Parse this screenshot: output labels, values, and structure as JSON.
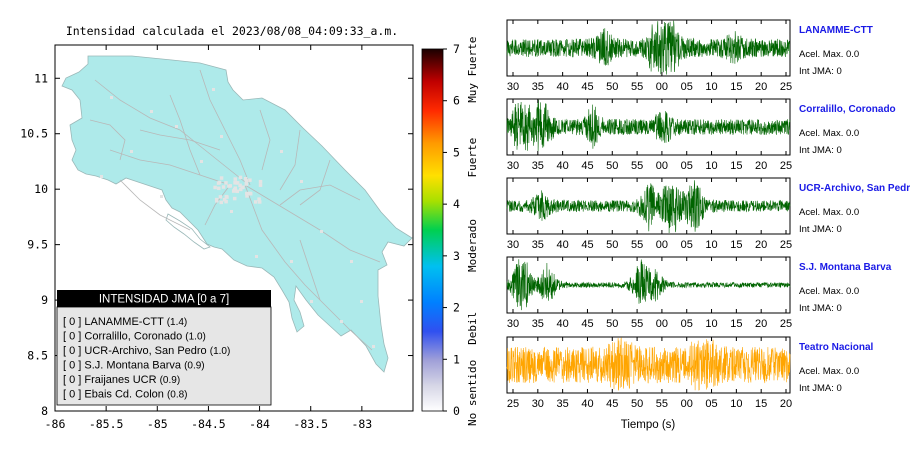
{
  "map": {
    "title": "Intensidad calculada el 2023/08/08_04:09:33_a.m.",
    "lat_ticks": [
      "11",
      "10.5",
      "10",
      "9.5",
      "9",
      "8.5",
      "8"
    ],
    "lon_ticks": [
      "-86",
      "-85.5",
      "-85",
      "-84.5",
      "-84",
      "-83.5",
      "-83"
    ],
    "lat_range": [
      8,
      11.3
    ],
    "lon_range": [
      -86,
      -82.5
    ],
    "land_color": "#aeeaea",
    "legend": {
      "title": "INTENSIDAD JMA [0 a 7]",
      "title_bg": "#000000",
      "title_color": "#ffffff",
      "box_bg": "#e6e6e6",
      "items": [
        {
          "label": "[ 0 ]  LANAMME-CTT",
          "value": "(1.4)"
        },
        {
          "label": "[ 0 ]  Corralillo, Coronado",
          "value": "(1.0)"
        },
        {
          "label": "[ 0 ]  UCR-Archivo, San Pedro",
          "value": "(1.0)"
        },
        {
          "label": "[ 0 ]  S.J. Montana Barva",
          "value": "(0.9)"
        },
        {
          "label": "[ 0 ]  Fraijanes UCR",
          "value": "(0.9)"
        },
        {
          "label": "[ 0 ]  Ebais Cd. Colon",
          "value": "(0.8)"
        }
      ]
    }
  },
  "colorbar": {
    "ticks": [
      "7",
      "6",
      "5",
      "4",
      "3",
      "2",
      "1",
      "0"
    ],
    "range": [
      0,
      7
    ],
    "categories": [
      "Muy Fuerte",
      "Fuerte",
      "Moderado",
      "Debil",
      "No sentido"
    ]
  },
  "chart_data": {
    "type": "line",
    "xlabel": "Tiempo (s)",
    "traces": [
      {
        "station": "LANAMME-CTT",
        "accel": "Acel. Max. 0.0",
        "int_jma": "Int JMA: 0",
        "x_ticks": [
          "30",
          "35",
          "40",
          "45",
          "50",
          "55",
          "00",
          "05",
          "10",
          "15",
          "20",
          "25"
        ],
        "color": "#006400",
        "label_color": "#1a1ae6",
        "amplitude": 0.35,
        "bursts": [
          {
            "at": 0.53,
            "amp": 1.0
          },
          {
            "at": 0.58,
            "amp": 0.55
          },
          {
            "at": 0.34,
            "amp": 0.35
          },
          {
            "at": 0.8,
            "amp": 0.25
          }
        ]
      },
      {
        "station": "Corralillo, Coronado",
        "accel": "Acel. Max. 0.0",
        "int_jma": "Int JMA: 0",
        "x_ticks": [
          "30",
          "35",
          "40",
          "45",
          "50",
          "55",
          "00",
          "05",
          "10",
          "15",
          "20",
          "25"
        ],
        "color": "#006400",
        "label_color": "#1a1ae6",
        "amplitude": 0.3,
        "bursts": [
          {
            "at": 0.05,
            "amp": 0.9
          },
          {
            "at": 0.12,
            "amp": 0.75
          },
          {
            "at": 0.3,
            "amp": 0.45
          },
          {
            "at": 0.55,
            "amp": 0.35
          }
        ]
      },
      {
        "station": "UCR-Archivo, San Pedro",
        "accel": "Acel. Max. 0.0",
        "int_jma": "Int JMA: 0",
        "x_ticks": [
          "30",
          "35",
          "40",
          "45",
          "50",
          "55",
          "00",
          "05",
          "10",
          "15",
          "20",
          "25"
        ],
        "color": "#006400",
        "label_color": "#1a1ae6",
        "amplitude": 0.22,
        "bursts": [
          {
            "at": 0.58,
            "amp": 1.0
          },
          {
            "at": 0.5,
            "amp": 0.6
          },
          {
            "at": 0.66,
            "amp": 0.7
          },
          {
            "at": 0.12,
            "amp": 0.3
          }
        ]
      },
      {
        "station": "S.J. Montana Barva",
        "accel": "Acel. Max. 0.0",
        "int_jma": "Int JMA: 0",
        "x_ticks": [
          "30",
          "35",
          "40",
          "45",
          "50",
          "55",
          "00",
          "05",
          "10",
          "15",
          "20",
          "25"
        ],
        "color": "#006400",
        "label_color": "#1a1ae6",
        "amplitude": 0.1,
        "bursts": [
          {
            "at": 0.05,
            "amp": 1.0
          },
          {
            "at": 0.14,
            "amp": 0.55
          },
          {
            "at": 0.47,
            "amp": 0.7
          },
          {
            "at": 0.52,
            "amp": 0.4
          }
        ]
      },
      {
        "station": "Teatro Nacional",
        "accel": "Acel. Max. 0.0",
        "int_jma": "Int JMA: 0",
        "x_ticks": [
          "25",
          "30",
          "35",
          "40",
          "45",
          "50",
          "55",
          "00",
          "05",
          "10",
          "15",
          "20"
        ],
        "color": "#ffa500",
        "label_color": "#1a1ae6",
        "amplitude": 0.7,
        "bursts": [
          {
            "at": 0.69,
            "amp": 1.0
          },
          {
            "at": 0.4,
            "amp": 0.8
          }
        ]
      }
    ]
  }
}
